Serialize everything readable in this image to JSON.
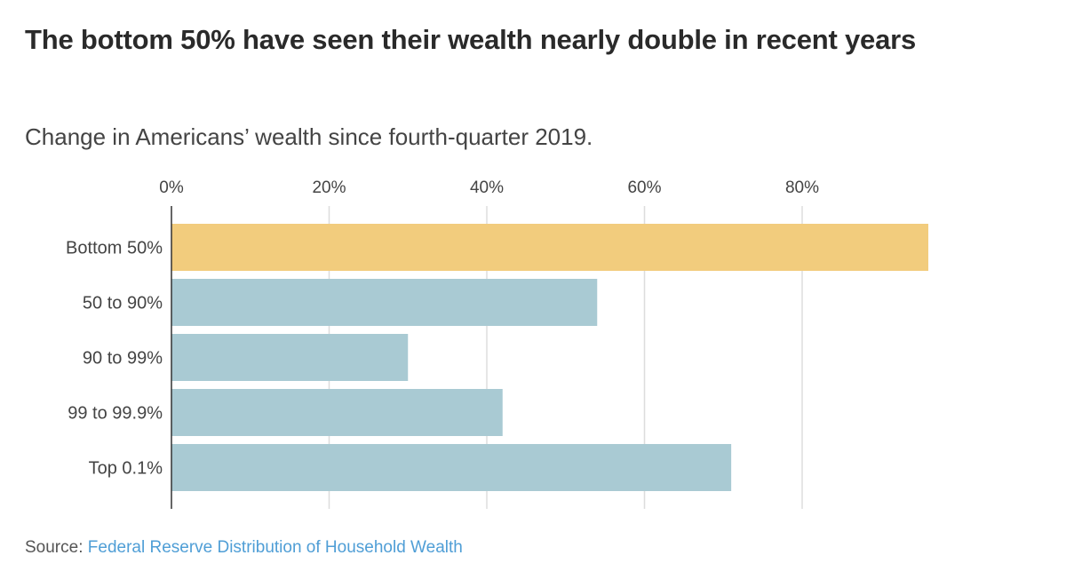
{
  "header": {
    "title": "The bottom 50% have seen their wealth nearly double in recent years",
    "subtitle": "Change in Americans’ wealth since fourth-quarter 2019."
  },
  "footer": {
    "source_label": "Source:",
    "source_link": "Federal Reserve Distribution of Household Wealth"
  },
  "colors": {
    "highlight": "#f2cc7d",
    "default": "#a9cad3",
    "gridline": "#dddddd",
    "axis": "#333333",
    "link": "#4f9ed6"
  },
  "chart_data": {
    "type": "bar",
    "orientation": "horizontal",
    "title": "The bottom 50% have seen their wealth nearly double in recent years",
    "subtitle": "Change in Americans’ wealth since fourth-quarter 2019.",
    "xlabel": "",
    "ylabel": "",
    "xlim": [
      0,
      100
    ],
    "grid": true,
    "ticks": [
      0,
      20,
      40,
      60,
      80
    ],
    "tick_labels": [
      "0%",
      "20%",
      "40%",
      "60%",
      "80%"
    ],
    "tick_position": "top",
    "categories": [
      "Bottom 50%",
      "50 to 90%",
      "90 to 99%",
      "99 to 99.9%",
      "Top 0.1%"
    ],
    "values": [
      96,
      54,
      30,
      42,
      71
    ],
    "highlight": [
      "Bottom 50%"
    ],
    "unit": "%"
  }
}
